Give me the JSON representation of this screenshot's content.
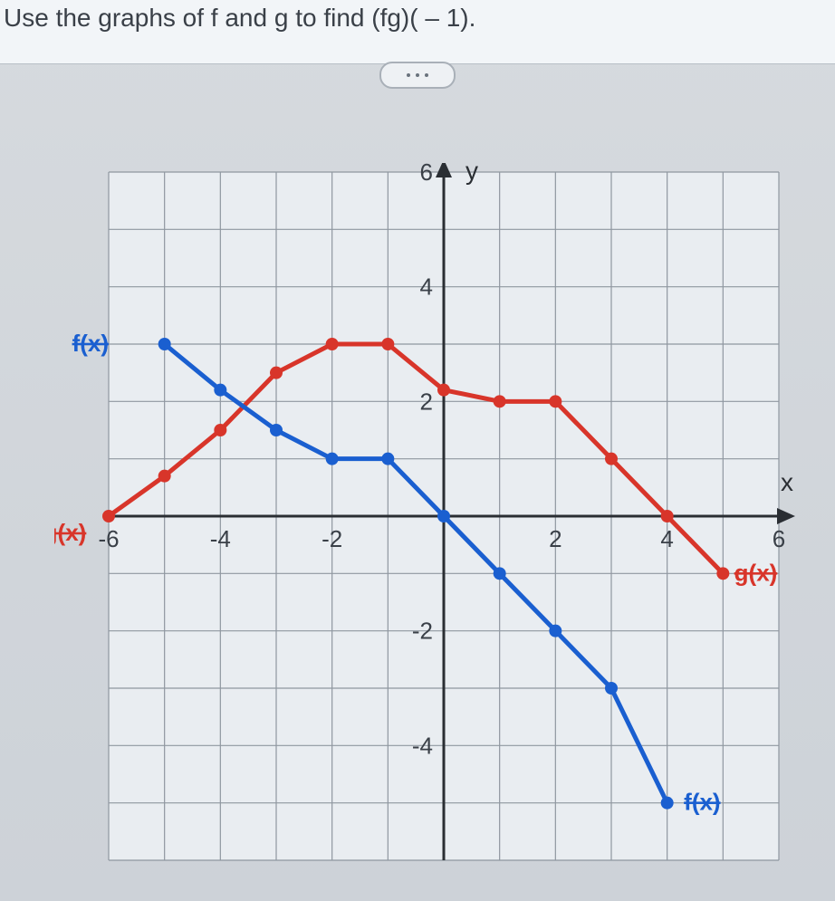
{
  "question": {
    "text": "Use the graphs of f and g to find (fg)( – 1)."
  },
  "chart": {
    "type": "line",
    "background_color": "#e9edf1",
    "grid_color": "#8f97a0",
    "axis_color": "#2a2e33",
    "axis_width": 3,
    "grid_width": 1.2,
    "xlim": [
      -6,
      6
    ],
    "ylim": [
      -6,
      6
    ],
    "xtick_step": 1,
    "ytick_step": 1,
    "xtick_labels": [
      {
        "x": -6,
        "label": "-6"
      },
      {
        "x": -4,
        "label": "-4"
      },
      {
        "x": -2,
        "label": "-2"
      },
      {
        "x": 2,
        "label": "2"
      },
      {
        "x": 4,
        "label": "4"
      },
      {
        "x": 6,
        "label": "6"
      }
    ],
    "ytick_labels": [
      {
        "y": 6,
        "label": "6"
      },
      {
        "y": 4,
        "label": "4"
      },
      {
        "y": 2,
        "label": "2"
      },
      {
        "y": -2,
        "label": "-2"
      },
      {
        "y": -4,
        "label": "-4"
      }
    ],
    "axis_labels": {
      "x": "x",
      "y": "y",
      "fontsize": 28,
      "color": "#2a2e33"
    },
    "tick_label_fontsize": 26,
    "tick_label_color": "#3a4048",
    "series": {
      "f": {
        "label": "f(x)",
        "label_color": "#1a5fd0",
        "color": "#1a5fd0",
        "line_width": 5,
        "marker_radius": 7,
        "points": [
          {
            "x": -5,
            "y": 3
          },
          {
            "x": -4,
            "y": 2.2
          },
          {
            "x": -3,
            "y": 1.5
          },
          {
            "x": -2,
            "y": 1
          },
          {
            "x": -1,
            "y": 1
          },
          {
            "x": 0,
            "y": 0
          },
          {
            "x": 1,
            "y": -1
          },
          {
            "x": 2,
            "y": -2
          },
          {
            "x": 3,
            "y": -3
          },
          {
            "x": 4,
            "y": -5
          }
        ],
        "start_label_pos": {
          "x": -6,
          "y": 3
        },
        "end_label_pos": {
          "x": 4.3,
          "y": -5
        }
      },
      "g": {
        "label": "g(x)",
        "label_color": "#d8352a",
        "color": "#d8352a",
        "line_width": 5,
        "marker_radius": 7,
        "points": [
          {
            "x": -6,
            "y": 0
          },
          {
            "x": -5,
            "y": 0.7
          },
          {
            "x": -4,
            "y": 1.5
          },
          {
            "x": -3,
            "y": 2.5
          },
          {
            "x": -2,
            "y": 3
          },
          {
            "x": -1,
            "y": 3
          },
          {
            "x": 0,
            "y": 2.2
          },
          {
            "x": 1,
            "y": 2
          },
          {
            "x": 2,
            "y": 2
          },
          {
            "x": 3,
            "y": 1
          },
          {
            "x": 4,
            "y": 0
          },
          {
            "x": 5,
            "y": -1
          }
        ],
        "start_label_pos": {
          "x": -6.4,
          "y": -0.3
        },
        "end_label_pos": {
          "x": 5.2,
          "y": -1
        }
      }
    }
  }
}
